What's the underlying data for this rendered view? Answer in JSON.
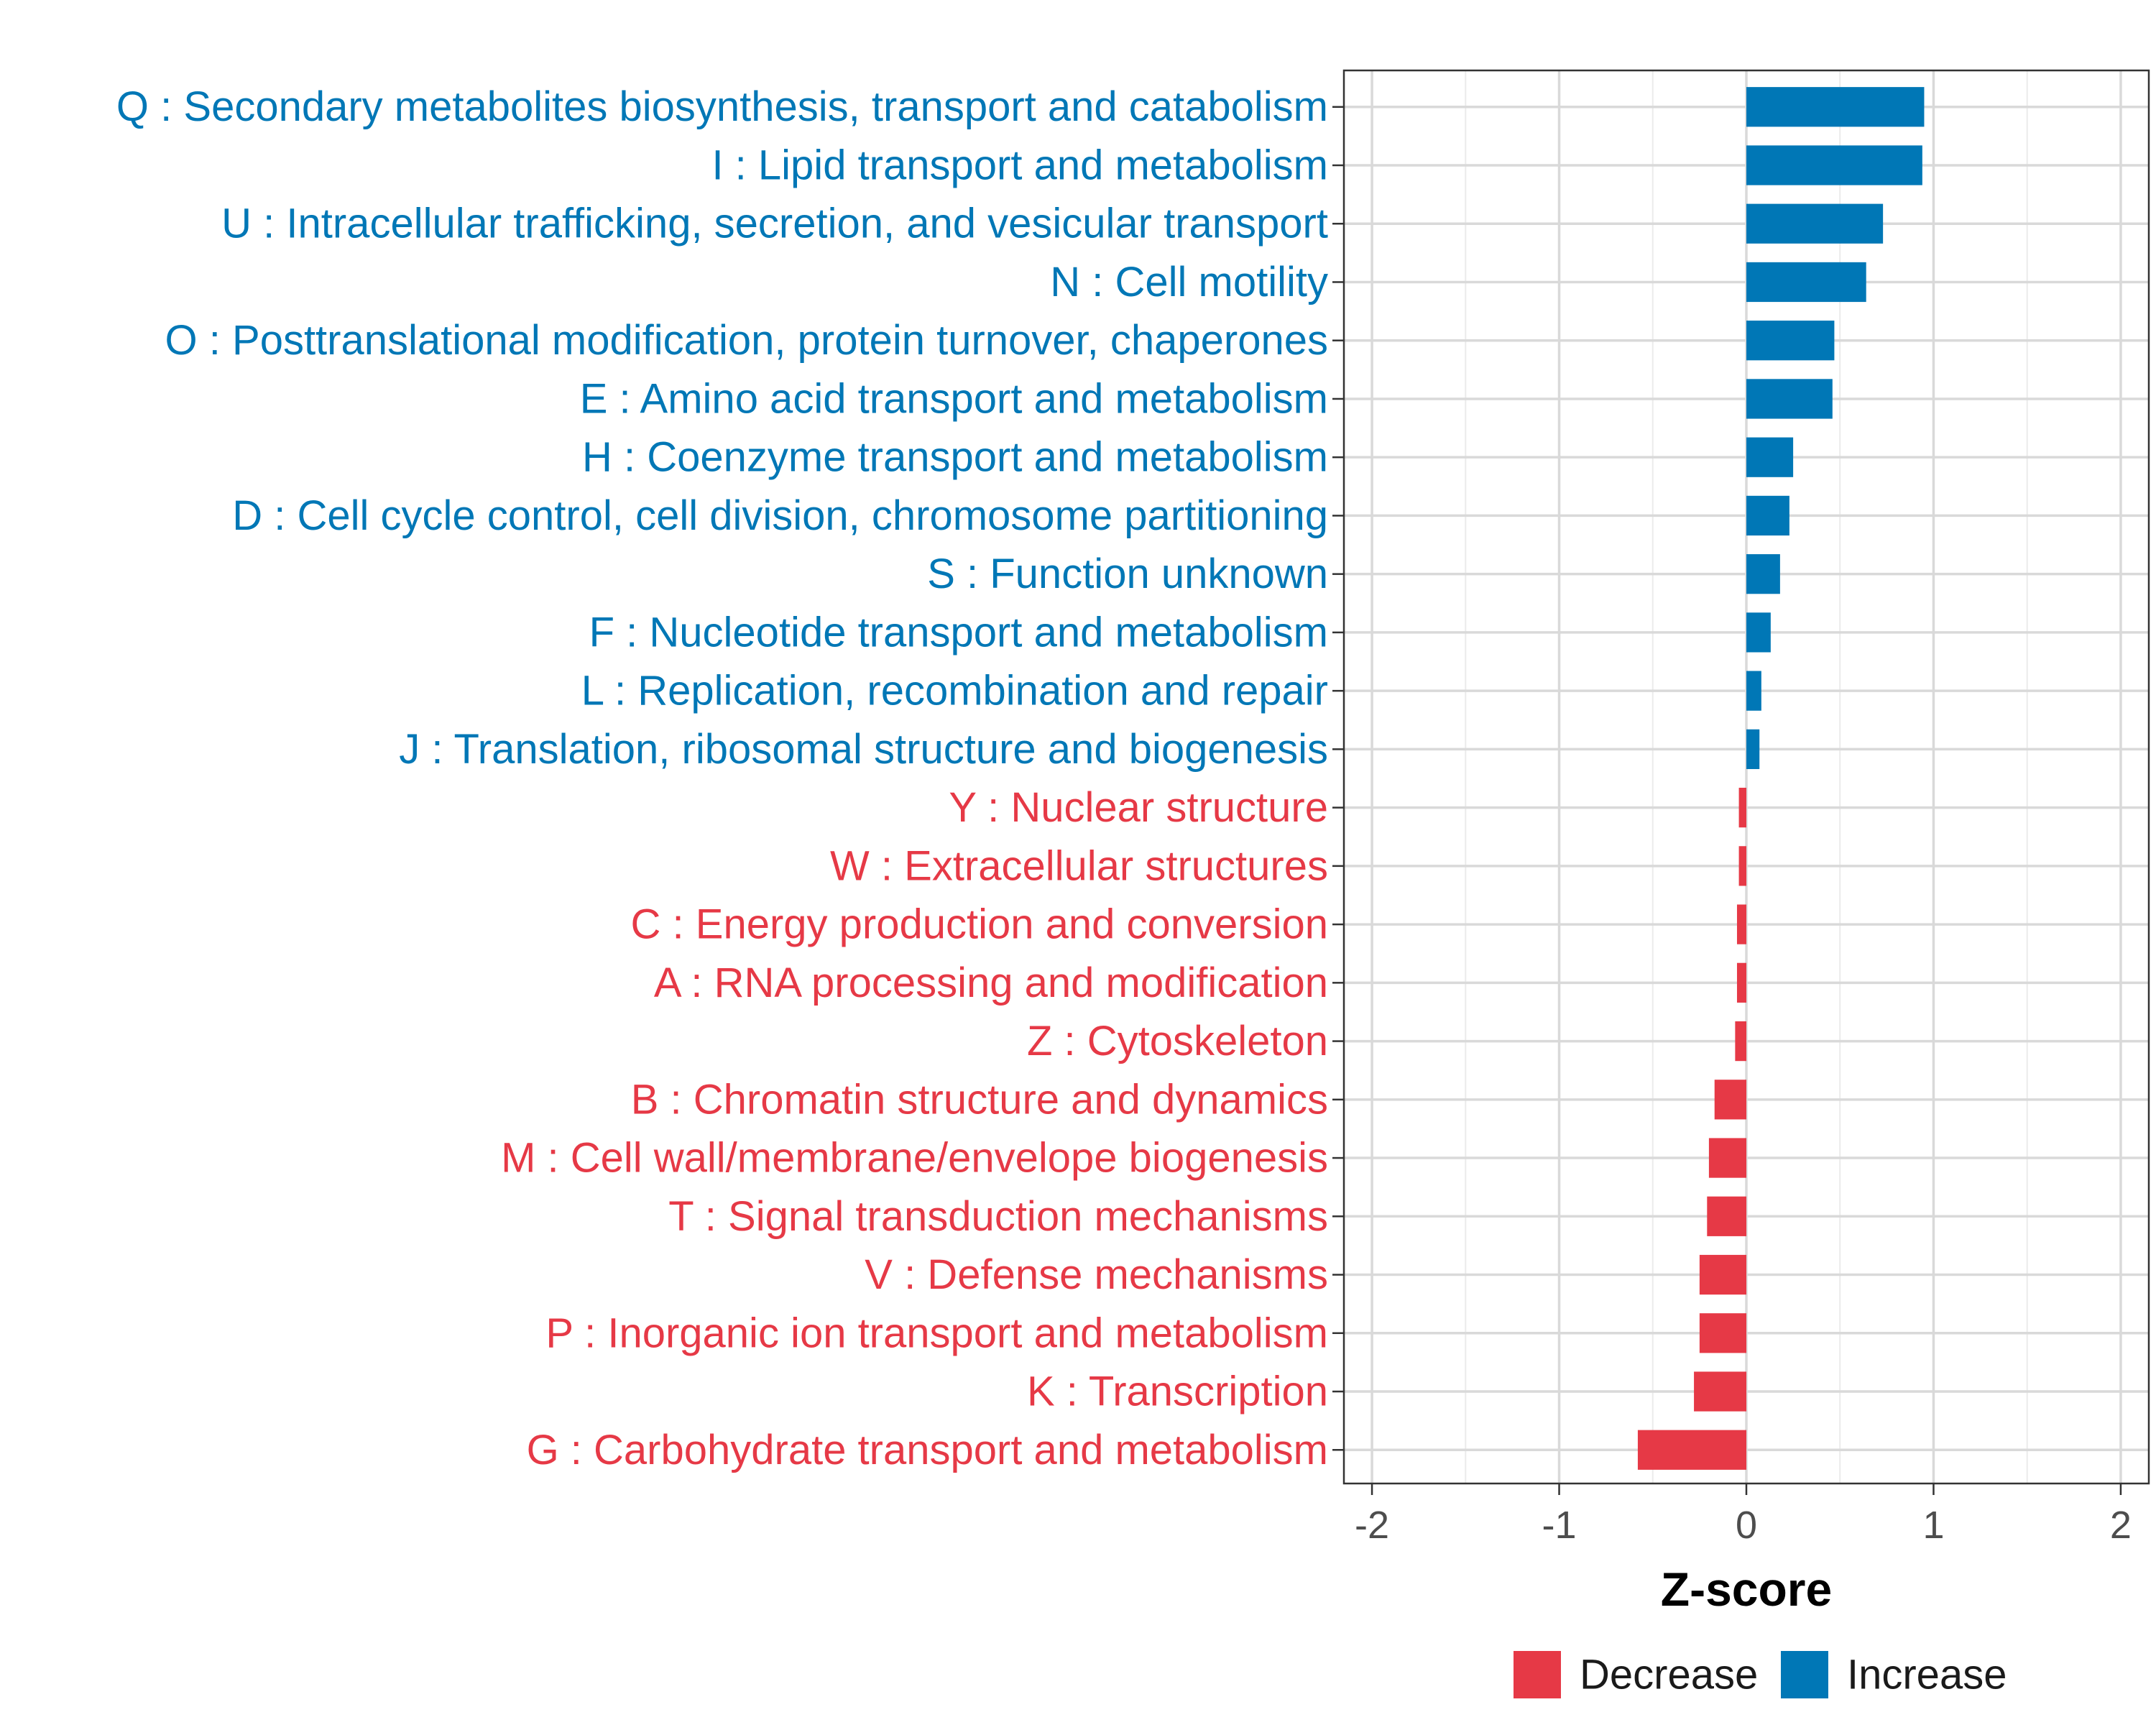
{
  "chart_data": {
    "type": "bar",
    "orientation": "horizontal",
    "title": "",
    "xlabel": "Z-score",
    "ylabel": "",
    "xlim": [
      -2.15,
      2.15
    ],
    "xticks": [
      -2,
      -1,
      0,
      1,
      2
    ],
    "xtick_labels": [
      "-2",
      "-1",
      "0",
      "1",
      "2"
    ],
    "grid": true,
    "legend_position": "bottom-right",
    "legend": [
      {
        "label": "Decrease",
        "color": "#E63946"
      },
      {
        "label": "Increase",
        "color": "#0077B6"
      }
    ],
    "categories": [
      {
        "label": "Q : Secondary metabolites biosynthesis, transport and catabolism",
        "value": 0.95,
        "group": "Increase"
      },
      {
        "label": "I : Lipid transport and metabolism",
        "value": 0.94,
        "group": "Increase"
      },
      {
        "label": "U : Intracellular trafficking, secretion, and vesicular transport",
        "value": 0.73,
        "group": "Increase"
      },
      {
        "label": "N : Cell motility",
        "value": 0.64,
        "group": "Increase"
      },
      {
        "label": "O : Posttranslational modification, protein turnover, chaperones",
        "value": 0.47,
        "group": "Increase"
      },
      {
        "label": "E : Amino acid transport and metabolism",
        "value": 0.46,
        "group": "Increase"
      },
      {
        "label": "H : Coenzyme transport and metabolism",
        "value": 0.25,
        "group": "Increase"
      },
      {
        "label": "D : Cell cycle control, cell division, chromosome partitioning",
        "value": 0.23,
        "group": "Increase"
      },
      {
        "label": "S : Function unknown",
        "value": 0.18,
        "group": "Increase"
      },
      {
        "label": "F : Nucleotide transport and metabolism",
        "value": 0.13,
        "group": "Increase"
      },
      {
        "label": "L : Replication, recombination and repair",
        "value": 0.08,
        "group": "Increase"
      },
      {
        "label": "J : Translation, ribosomal structure and biogenesis",
        "value": 0.07,
        "group": "Increase"
      },
      {
        "label": "Y : Nuclear structure",
        "value": -0.04,
        "group": "Decrease"
      },
      {
        "label": "W : Extracellular structures",
        "value": -0.04,
        "group": "Decrease"
      },
      {
        "label": "C : Energy production and conversion",
        "value": -0.05,
        "group": "Decrease"
      },
      {
        "label": "A : RNA processing and modification",
        "value": -0.05,
        "group": "Decrease"
      },
      {
        "label": "Z : Cytoskeleton",
        "value": -0.06,
        "group": "Decrease"
      },
      {
        "label": "B : Chromatin structure and dynamics",
        "value": -0.17,
        "group": "Decrease"
      },
      {
        "label": "M : Cell wall/membrane/envelope biogenesis",
        "value": -0.2,
        "group": "Decrease"
      },
      {
        "label": "T : Signal transduction mechanisms",
        "value": -0.21,
        "group": "Decrease"
      },
      {
        "label": "V : Defense mechanisms",
        "value": -0.25,
        "group": "Decrease"
      },
      {
        "label": "P : Inorganic ion transport and metabolism",
        "value": -0.25,
        "group": "Decrease"
      },
      {
        "label": "K : Transcription",
        "value": -0.28,
        "group": "Decrease"
      },
      {
        "label": "G : Carbohydrate transport and metabolism",
        "value": -0.58,
        "group": "Decrease"
      }
    ]
  }
}
